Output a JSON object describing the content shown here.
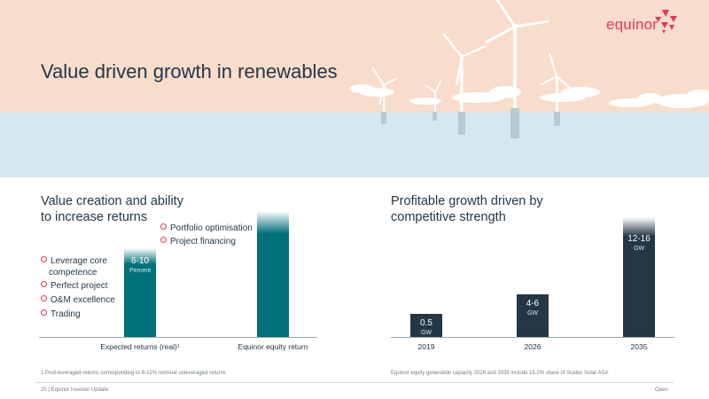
{
  "header": {
    "brand": "equinor",
    "title": "Value driven growth in renewables"
  },
  "colors": {
    "accent": "#ea3656",
    "teal": "#007079",
    "navy": "#243746",
    "sky": "#f8dccc",
    "sea": "#d6e8ef"
  },
  "left_panel": {
    "title_line1": "Value creation and ability",
    "title_line2": "to increase returns",
    "bullets_left": [
      "Leverage core",
      "competence",
      "Perfect project",
      "O&M excellence",
      "Trading"
    ],
    "bullets_right": [
      "Portfolio optimisation",
      "Project financing"
    ],
    "bar1_value": "6-10",
    "bar1_unit": "Percent",
    "x_labels": [
      "Expected returns (real)¹",
      "Equinor equity return"
    ],
    "footnote": "1  Post-leveraged returns corresponding to 8-12% nominal unleveraged returns"
  },
  "right_panel": {
    "title_line1": "Profitable growth driven by",
    "title_line2": "competitive strength",
    "chart_data": {
      "type": "bar",
      "categories": [
        "2019",
        "2026",
        "2035"
      ],
      "value_labels": [
        "0.5",
        "4-6",
        "12-16"
      ],
      "unit": "GW",
      "values": [
        0.5,
        5,
        14
      ]
    },
    "footnote": "Equinor equity generation capacity 2026 and 2035 include 15.2% share of Scatec Solar ASA"
  },
  "footer": {
    "left": "20 | Equinor Investor Update",
    "right": "Open"
  }
}
